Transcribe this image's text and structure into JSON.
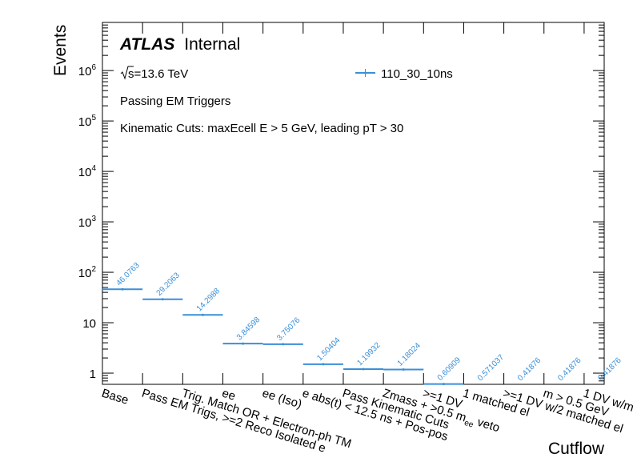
{
  "chart_data": {
    "type": "bar",
    "plot_style": "histogram-step",
    "ylabel": "Events",
    "xlabel": "Cutflow",
    "yscale": "log",
    "ylim": [
      0.6,
      9000000
    ],
    "y_ticks": [
      {
        "value": 1,
        "label": "1"
      },
      {
        "value": 10,
        "label": "10"
      },
      {
        "value": 100,
        "label": "10",
        "exp": "2"
      },
      {
        "value": 1000,
        "label": "10",
        "exp": "3"
      },
      {
        "value": 10000,
        "label": "10",
        "exp": "4"
      },
      {
        "value": 100000,
        "label": "10",
        "exp": "5"
      },
      {
        "value": 1000000,
        "label": "10",
        "exp": "6"
      }
    ],
    "categories": [
      "Base",
      "Pass EM Trigs, >=2 Reco Isolated e",
      "Trig. Match OR + Electron-ph TM",
      "ee",
      "ee (Iso)",
      "e abs(t) < 12.5 ns + Pos-pos",
      "Pass Kinematic Cuts",
      "Zmass + >0.5 m",
      ">=1 DV",
      "1 matched el",
      ">=1 DV w/2 matched el",
      "m > 0.5 GeV",
      "1 DV w/m"
    ],
    "category_subscripts": {
      "7": {
        "sub": "ee",
        "suffix": " veto"
      }
    },
    "series": [
      {
        "name": "110_30_10ns",
        "color": "#3a8fd9",
        "values": [
          46.0763,
          29.2063,
          14.2988,
          3.84598,
          3.75076,
          1.50404,
          1.19932,
          1.18024,
          0.60909,
          0.571037,
          0.41876,
          0.41876,
          0.41876
        ],
        "labels": [
          "46.0763",
          "29.2063",
          "14.2988",
          "3.84598",
          "3.75076",
          "1.50404",
          "1.19932",
          "1.18024",
          "0.60909",
          "0.571037",
          "0.41876",
          "0.41876",
          "0.41876"
        ]
      }
    ],
    "legend": {
      "entry": "110_30_10ns",
      "placement": "top-right"
    },
    "annotations": {
      "atlas": "ATLAS",
      "atlas_suffix": "Internal",
      "energy_prefix": "s=13.6 TeV",
      "line2": "Passing EM Triggers",
      "line3": "Kinematic Cuts: maxEcell E > 5 GeV, leading pT > 30"
    },
    "grid": false
  }
}
